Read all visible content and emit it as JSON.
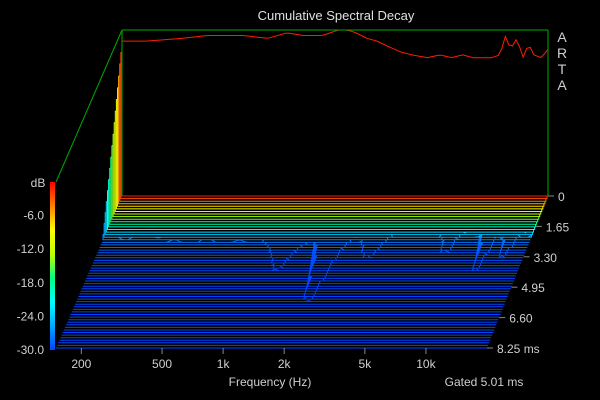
{
  "chart_data": {
    "type": "waterfall",
    "title": "Cumulative Spectral Decay",
    "brand": "ARTA",
    "xlabel": "Frequency (Hz)",
    "x_scale": "log",
    "x_ticks": [
      "200",
      "500",
      "1k",
      "2k",
      "5k",
      "10k"
    ],
    "x_tick_values": [
      200,
      500,
      1000,
      2000,
      5000,
      10000
    ],
    "xlim": [
      150,
      20000
    ],
    "zlabel": "dB",
    "z_ticks": [
      "-6.0",
      "-12.0",
      "-18.0",
      "-24.0",
      "-30.0"
    ],
    "z_tick_values": [
      -6,
      -12,
      -18,
      -24,
      -30
    ],
    "zlim": [
      -30,
      0
    ],
    "time_ticks": [
      "0",
      "1.65",
      "3.30",
      "4.95",
      "6.60",
      "8.25 ms"
    ],
    "time_tick_values": [
      0,
      1.65,
      3.3,
      4.95,
      6.6,
      8.25
    ],
    "time_range_ms": [
      0,
      8.25
    ],
    "gate_note": "Gated 5.01 ms",
    "colormap": [
      "#0044ff",
      "#00aaff",
      "#00ffff",
      "#00ff80",
      "#c0ff00",
      "#ffff00",
      "#ff8000",
      "#ff0000"
    ],
    "frame_color": "#00aa00",
    "background": "#000000",
    "front_slice_db": {
      "freq_hz": [
        200,
        300,
        400,
        600,
        800,
        1000,
        1200,
        1500,
        1800,
        2000,
        2200,
        2500,
        2800,
        3200,
        3700,
        4200,
        5000,
        5800,
        6600,
        7500,
        8500,
        9500,
        10500,
        11500,
        12300,
        13000,
        14000,
        15000,
        16000,
        17000,
        18500,
        20000
      ],
      "level_db": [
        -2,
        -1.5,
        -1,
        -1,
        -1.5,
        -0.5,
        -1,
        -1,
        0,
        0,
        -0.5,
        -1.5,
        -2,
        -3,
        -4,
        -4.5,
        -5,
        -4.5,
        -5,
        -4.5,
        -5,
        -5,
        -5,
        -4.5,
        -1,
        -3.5,
        -1.5,
        -5,
        -2.5,
        -4.5,
        -5,
        -3.5
      ]
    }
  }
}
